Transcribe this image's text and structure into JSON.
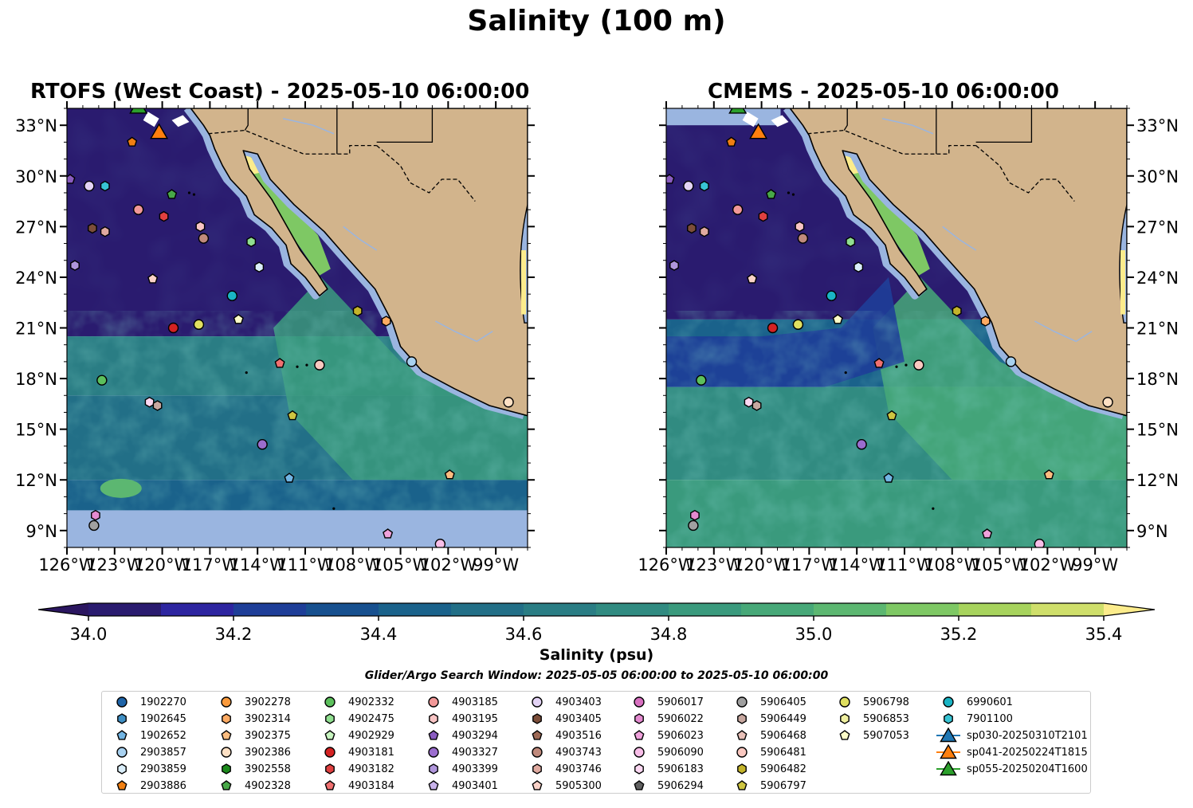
{
  "figure": {
    "suptitle": "Salinity (100 m)",
    "colorbar_label": "Salinity (psu)",
    "search_window": "Glider/Argo Search Window: 2025-05-05 06:00:00 to 2025-05-10 06:00:00"
  },
  "chart_data": [
    {
      "type": "heatmap",
      "title": "RTOFS (West Coast) - 2025-05-10 06:00:00",
      "variable": "salinity at 100 m",
      "units": "psu",
      "xlim": [
        -126,
        -97
      ],
      "ylim": [
        8,
        34
      ],
      "xticks": [
        "126°W",
        "123°W",
        "120°W",
        "117°W",
        "114°W",
        "111°W",
        "108°W",
        "105°W",
        "102°W",
        "99°W"
      ],
      "yticks": [
        "9°N",
        "12°N",
        "15°N",
        "18°N",
        "21°N",
        "24°N",
        "27°N",
        "30°N",
        "33°N"
      ],
      "no_data_band_lat": [
        8,
        10.2
      ],
      "land_color": "#d2b48c",
      "ocean_fill_color": "#9ab5e0"
    },
    {
      "type": "heatmap",
      "title": "CMEMS - 2025-05-10 06:00:00",
      "variable": "salinity at 100 m",
      "units": "psu",
      "xlim": [
        -126,
        -97
      ],
      "ylim": [
        8,
        34
      ],
      "xticks": [
        "126°W",
        "123°W",
        "120°W",
        "117°W",
        "114°W",
        "111°W",
        "108°W",
        "105°W",
        "102°W",
        "99°W"
      ],
      "yticks": [
        "9°N",
        "12°N",
        "15°N",
        "18°N",
        "21°N",
        "24°N",
        "27°N",
        "30°N",
        "33°N"
      ],
      "land_color": "#d2b48c",
      "ocean_fill_color": "#9ab5e0"
    },
    {
      "type": "colorbar",
      "label": "Salinity (psu)",
      "range": [
        34.0,
        35.4
      ],
      "step": 0.1,
      "extend": "both",
      "ticks": [
        "34.0",
        "34.2",
        "34.4",
        "34.6",
        "34.8",
        "35.0",
        "35.2",
        "35.4"
      ],
      "colors": [
        "#2a1b6f",
        "#2d25a0",
        "#1e3e98",
        "#17508f",
        "#1a628b",
        "#226f87",
        "#2a7d84",
        "#318b81",
        "#3a9a7d",
        "#47a878",
        "#5cb771",
        "#7ec864",
        "#a7d35d",
        "#cfdf6b"
      ],
      "under_color": "#2b1660",
      "over_color": "#fcec8c"
    }
  ],
  "floats": [
    {
      "id": "1902270",
      "lat": null,
      "lon": null,
      "marker": "circle",
      "color": "#1f64a8"
    },
    {
      "id": "1902645",
      "lat": null,
      "lon": null,
      "marker": "hexagon",
      "color": "#3f8fc4"
    },
    {
      "id": "1902652",
      "lat": 12.1,
      "lon": -112.0,
      "marker": "pentagon",
      "color": "#72b5e4"
    },
    {
      "id": "2903857",
      "lat": 19.0,
      "lon": -104.3,
      "marker": "circle",
      "color": "#a8d1f0"
    },
    {
      "id": "2903859",
      "lat": 24.6,
      "lon": -113.9,
      "marker": "hexagon",
      "color": "#daeefa"
    },
    {
      "id": "2903886",
      "lat": 32.0,
      "lon": -121.9,
      "marker": "pentagon",
      "color": "#f07f12"
    },
    {
      "id": "3902278",
      "lat": null,
      "lon": null,
      "marker": "circle",
      "color": "#fa9a3c"
    },
    {
      "id": "3902314",
      "lat": 21.4,
      "lon": -105.9,
      "marker": "hexagon",
      "color": "#fdaa62"
    },
    {
      "id": "3902375",
      "lat": 12.3,
      "lon": -101.9,
      "marker": "pentagon",
      "color": "#fcbd80"
    },
    {
      "id": "3902386",
      "lat": 16.6,
      "lon": -98.2,
      "marker": "circle",
      "color": "#fde0c4"
    },
    {
      "id": "3902558",
      "lat": null,
      "lon": null,
      "marker": "hexagon",
      "color": "#1c8a1c"
    },
    {
      "id": "4902328",
      "lat": 28.9,
      "lon": -119.4,
      "marker": "pentagon",
      "color": "#48a848"
    },
    {
      "id": "4902332",
      "lat": 17.9,
      "lon": -123.8,
      "marker": "circle",
      "color": "#5cc05c"
    },
    {
      "id": "4902475",
      "lat": 26.1,
      "lon": -114.4,
      "marker": "hexagon",
      "color": "#90df90"
    },
    {
      "id": "4902929",
      "lat": null,
      "lon": null,
      "marker": "pentagon",
      "color": "#c8f5c0"
    },
    {
      "id": "4903181",
      "lat": 21.0,
      "lon": -119.3,
      "marker": "circle",
      "color": "#d42222"
    },
    {
      "id": "4903182",
      "lat": 27.6,
      "lon": -119.9,
      "marker": "hexagon",
      "color": "#e04040"
    },
    {
      "id": "4903184",
      "lat": 18.9,
      "lon": -112.6,
      "marker": "pentagon",
      "color": "#f07070"
    },
    {
      "id": "4903185",
      "lat": 28.0,
      "lon": -121.5,
      "marker": "circle",
      "color": "#f29898"
    },
    {
      "id": "4903195",
      "lat": 27.0,
      "lon": -117.6,
      "marker": "hexagon",
      "color": "#f8c4c4"
    },
    {
      "id": "4903294",
      "lat": 29.8,
      "lon": -125.8,
      "marker": "pentagon",
      "color": "#8a5cc0"
    },
    {
      "id": "4903327",
      "lat": 14.1,
      "lon": -113.7,
      "marker": "circle",
      "color": "#9b6dce"
    },
    {
      "id": "4903399",
      "lat": 24.7,
      "lon": -125.5,
      "marker": "hexagon",
      "color": "#b096dc"
    },
    {
      "id": "4903401",
      "lat": null,
      "lon": null,
      "marker": "pentagon",
      "color": "#c8b2ea"
    },
    {
      "id": "4903403",
      "lat": 29.4,
      "lon": -124.6,
      "marker": "circle",
      "color": "#e3d3f5"
    },
    {
      "id": "4903405",
      "lat": 26.9,
      "lon": -124.4,
      "marker": "hexagon",
      "color": "#7c4e3a"
    },
    {
      "id": "4903516",
      "lat": null,
      "lon": null,
      "marker": "pentagon",
      "color": "#9e6a56"
    },
    {
      "id": "4903743",
      "lat": 26.3,
      "lon": -117.4,
      "marker": "circle",
      "color": "#c08a7c"
    },
    {
      "id": "4903746",
      "lat": 26.7,
      "lon": -123.6,
      "marker": "hexagon",
      "color": "#e0aaa0"
    },
    {
      "id": "5905300",
      "lat": 23.9,
      "lon": -120.6,
      "marker": "pentagon",
      "color": "#fad2c8"
    },
    {
      "id": "5906017",
      "lat": null,
      "lon": null,
      "marker": "circle",
      "color": "#d870c0"
    },
    {
      "id": "5906022",
      "lat": 9.9,
      "lon": -124.2,
      "marker": "hexagon",
      "color": "#e48ad0"
    },
    {
      "id": "5906023",
      "lat": 8.8,
      "lon": -105.8,
      "marker": "pentagon",
      "color": "#f0a2dc"
    },
    {
      "id": "5906090",
      "lat": 8.2,
      "lon": -102.5,
      "marker": "circle",
      "color": "#f8bee8"
    },
    {
      "id": "5906183",
      "lat": 16.6,
      "lon": -120.8,
      "marker": "hexagon",
      "color": "#fcd8f2"
    },
    {
      "id": "5906294",
      "lat": null,
      "lon": null,
      "marker": "pentagon",
      "color": "#606060"
    },
    {
      "id": "5906405",
      "lat": 9.3,
      "lon": -124.3,
      "marker": "circle",
      "color": "#a0a0a0"
    },
    {
      "id": "5906449",
      "lat": 16.4,
      "lon": -120.3,
      "marker": "hexagon",
      "color": "#c8a8a0"
    },
    {
      "id": "5906468",
      "lat": null,
      "lon": null,
      "marker": "pentagon",
      "color": "#e8c0b8"
    },
    {
      "id": "5906481",
      "lat": 18.8,
      "lon": -110.1,
      "marker": "circle",
      "color": "#fac8c0"
    },
    {
      "id": "5906482",
      "lat": 22.0,
      "lon": -107.7,
      "marker": "hexagon",
      "color": "#c4b42a"
    },
    {
      "id": "5906797",
      "lat": 15.8,
      "lon": -111.8,
      "marker": "pentagon",
      "color": "#cec540"
    },
    {
      "id": "5906798",
      "lat": 21.2,
      "lon": -117.7,
      "marker": "circle",
      "color": "#e0e060"
    },
    {
      "id": "5906853",
      "lat": null,
      "lon": null,
      "marker": "hexagon",
      "color": "#f0f0a0"
    },
    {
      "id": "5907053",
      "lat": 21.5,
      "lon": -115.2,
      "marker": "pentagon",
      "color": "#fcfcc8"
    },
    {
      "id": "6990601",
      "lat": 22.9,
      "lon": -115.6,
      "marker": "circle",
      "color": "#1ab4c4"
    },
    {
      "id": "7901100",
      "lat": 29.4,
      "lon": -123.6,
      "marker": "hexagon",
      "color": "#38c4d4"
    },
    {
      "id": "sp030-20250310T2101",
      "lat": null,
      "lon": null,
      "marker": "triangle",
      "color": "#1f77b4"
    },
    {
      "id": "sp041-20250224T1815",
      "lat": 32.5,
      "lon": -120.2,
      "marker": "triangle",
      "color": "#ff7f0e"
    },
    {
      "id": "sp055-20250204T1600",
      "lat": 34.0,
      "lon": -121.5,
      "marker": "triangle",
      "color": "#2ca02c"
    }
  ]
}
